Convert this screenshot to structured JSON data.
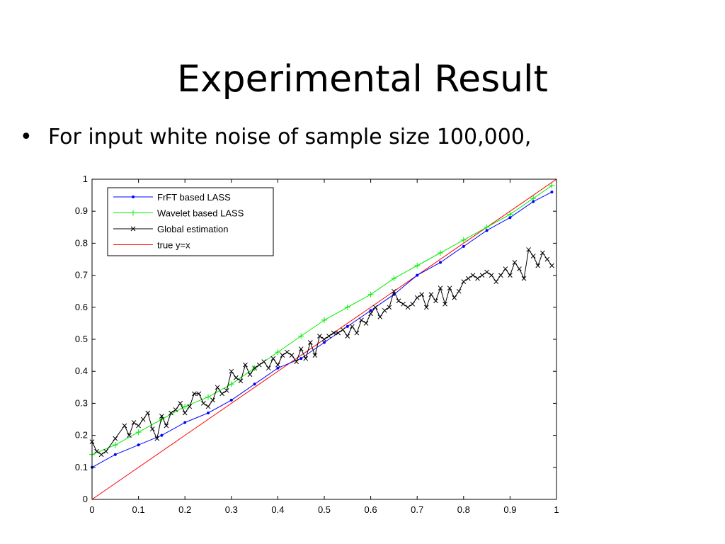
{
  "slide": {
    "title": "Experimental Result",
    "bullet_symbol": "•",
    "bullet_text": "For input white noise of sample size 100,000,"
  },
  "chart_data": {
    "type": "line",
    "xlim": [
      0,
      1
    ],
    "ylim": [
      0,
      1
    ],
    "xticks": [
      0,
      0.1,
      0.2,
      0.3,
      0.4,
      0.5,
      0.6,
      0.7,
      0.8,
      0.9,
      1
    ],
    "yticks": [
      0,
      0.1,
      0.2,
      0.3,
      0.4,
      0.5,
      0.6,
      0.7,
      0.8,
      0.9,
      1
    ],
    "xtick_labels": [
      "0",
      "0.1",
      "0.2",
      "0.3",
      "0.4",
      "0.5",
      "0.6",
      "0.7",
      "0.8",
      "0.9",
      "1"
    ],
    "ytick_labels": [
      "0",
      "0.1",
      "0.2",
      "0.3",
      "0.4",
      "0.5",
      "0.6",
      "0.7",
      "0.8",
      "0.9",
      "1"
    ],
    "grid": false,
    "legend_position": "top-left",
    "series": [
      {
        "name": "FrFT based LASS",
        "color": "#0000ff",
        "marker": "dot",
        "x": [
          0,
          0.05,
          0.1,
          0.15,
          0.2,
          0.25,
          0.3,
          0.35,
          0.4,
          0.45,
          0.5,
          0.55,
          0.6,
          0.65,
          0.7,
          0.75,
          0.8,
          0.85,
          0.9,
          0.95,
          0.99
        ],
        "y": [
          0.1,
          0.14,
          0.17,
          0.2,
          0.24,
          0.27,
          0.31,
          0.36,
          0.41,
          0.44,
          0.49,
          0.54,
          0.59,
          0.64,
          0.7,
          0.74,
          0.79,
          0.84,
          0.88,
          0.93,
          0.96
        ]
      },
      {
        "name": "Wavelet based LASS",
        "color": "#00ee00",
        "marker": "plus",
        "x": [
          0,
          0.05,
          0.1,
          0.15,
          0.2,
          0.25,
          0.3,
          0.35,
          0.4,
          0.45,
          0.5,
          0.55,
          0.6,
          0.65,
          0.7,
          0.75,
          0.8,
          0.85,
          0.9,
          0.95,
          0.99
        ],
        "y": [
          0.14,
          0.17,
          0.21,
          0.25,
          0.29,
          0.32,
          0.36,
          0.41,
          0.46,
          0.51,
          0.56,
          0.6,
          0.64,
          0.69,
          0.73,
          0.77,
          0.81,
          0.85,
          0.89,
          0.94,
          0.98
        ]
      },
      {
        "name": "Global estimation",
        "color": "#000000",
        "marker": "x",
        "x": [
          0,
          0.01,
          0.02,
          0.03,
          0.05,
          0.07,
          0.08,
          0.09,
          0.1,
          0.11,
          0.12,
          0.13,
          0.14,
          0.15,
          0.16,
          0.17,
          0.18,
          0.19,
          0.2,
          0.21,
          0.22,
          0.23,
          0.24,
          0.25,
          0.26,
          0.27,
          0.28,
          0.29,
          0.3,
          0.31,
          0.32,
          0.33,
          0.34,
          0.35,
          0.36,
          0.37,
          0.38,
          0.39,
          0.4,
          0.41,
          0.42,
          0.43,
          0.44,
          0.45,
          0.46,
          0.47,
          0.48,
          0.49,
          0.5,
          0.51,
          0.52,
          0.53,
          0.54,
          0.55,
          0.56,
          0.57,
          0.58,
          0.59,
          0.6,
          0.61,
          0.62,
          0.63,
          0.64,
          0.65,
          0.66,
          0.67,
          0.68,
          0.69,
          0.7,
          0.71,
          0.72,
          0.73,
          0.74,
          0.75,
          0.76,
          0.77,
          0.78,
          0.79,
          0.8,
          0.81,
          0.82,
          0.83,
          0.84,
          0.85,
          0.86,
          0.87,
          0.88,
          0.89,
          0.9,
          0.91,
          0.92,
          0.93,
          0.94,
          0.95,
          0.96,
          0.97,
          0.98,
          0.99
        ],
        "y": [
          0.18,
          0.15,
          0.14,
          0.15,
          0.19,
          0.23,
          0.2,
          0.24,
          0.23,
          0.25,
          0.27,
          0.22,
          0.19,
          0.26,
          0.23,
          0.27,
          0.28,
          0.3,
          0.27,
          0.29,
          0.33,
          0.33,
          0.3,
          0.29,
          0.31,
          0.35,
          0.33,
          0.34,
          0.4,
          0.38,
          0.37,
          0.42,
          0.39,
          0.41,
          0.42,
          0.43,
          0.41,
          0.44,
          0.42,
          0.45,
          0.46,
          0.45,
          0.43,
          0.47,
          0.44,
          0.49,
          0.45,
          0.51,
          0.5,
          0.51,
          0.52,
          0.52,
          0.53,
          0.51,
          0.54,
          0.52,
          0.56,
          0.55,
          0.58,
          0.6,
          0.57,
          0.59,
          0.6,
          0.65,
          0.62,
          0.61,
          0.6,
          0.61,
          0.63,
          0.64,
          0.6,
          0.64,
          0.62,
          0.66,
          0.61,
          0.66,
          0.63,
          0.65,
          0.68,
          0.69,
          0.7,
          0.69,
          0.7,
          0.71,
          0.7,
          0.68,
          0.7,
          0.72,
          0.7,
          0.74,
          0.72,
          0.69,
          0.78,
          0.76,
          0.73,
          0.77,
          0.75,
          0.73
        ]
      },
      {
        "name": "true y=x",
        "color": "#ff0000",
        "marker": "none",
        "x": [
          0,
          1
        ],
        "y": [
          0,
          1
        ]
      }
    ]
  }
}
